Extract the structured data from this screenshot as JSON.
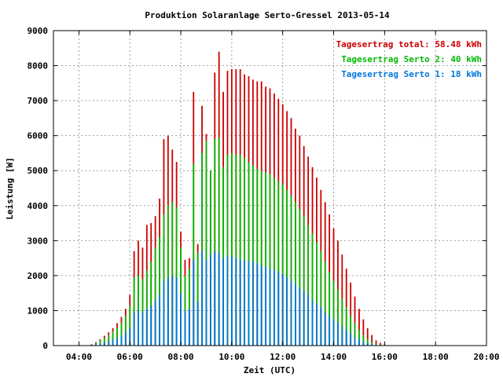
{
  "chart_data": {
    "type": "bar",
    "title": "Produktion Solaranlage Serto-Gressel 2013-05-14",
    "xlabel": "Zeit (UTC)",
    "ylabel": "Leistung [W]",
    "xlim": [
      3.0,
      20.0
    ],
    "ylim": [
      0,
      9000
    ],
    "grid": true,
    "legend_position": "top-right",
    "x_ticks": [
      {
        "value": 4,
        "label": "04:00"
      },
      {
        "value": 6,
        "label": "06:00"
      },
      {
        "value": 8,
        "label": "08:00"
      },
      {
        "value": 10,
        "label": "10:00"
      },
      {
        "value": 12,
        "label": "12:00"
      },
      {
        "value": 14,
        "label": "14:00"
      },
      {
        "value": 16,
        "label": "16:00"
      },
      {
        "value": 18,
        "label": "18:00"
      },
      {
        "value": 20,
        "label": "20:00"
      }
    ],
    "y_ticks": [
      {
        "value": 0,
        "label": "0"
      },
      {
        "value": 1000,
        "label": "1000"
      },
      {
        "value": 2000,
        "label": "2000"
      },
      {
        "value": 3000,
        "label": "3000"
      },
      {
        "value": 4000,
        "label": "4000"
      },
      {
        "value": 5000,
        "label": "5000"
      },
      {
        "value": 6000,
        "label": "6000"
      },
      {
        "value": 7000,
        "label": "7000"
      },
      {
        "value": 8000,
        "label": "8000"
      },
      {
        "value": 9000,
        "label": "9000"
      }
    ],
    "series": [
      {
        "name": "Tagesertrag total: 58.48 kWh",
        "color": "#cc0000"
      },
      {
        "name": "Tagesertrag Serto 2: 40 kWh",
        "color": "#00bb00"
      },
      {
        "name": "Tagesertrag Serto 1: 18 kWh",
        "color": "#0077dd"
      }
    ],
    "interval_minutes": 10,
    "x": [
      4.5,
      4.667,
      4.833,
      5.0,
      5.167,
      5.333,
      5.5,
      5.667,
      5.833,
      6.0,
      6.167,
      6.333,
      6.5,
      6.667,
      6.833,
      7.0,
      7.167,
      7.333,
      7.5,
      7.667,
      7.833,
      8.0,
      8.167,
      8.333,
      8.5,
      8.667,
      8.833,
      9.0,
      9.167,
      9.333,
      9.5,
      9.667,
      9.833,
      10.0,
      10.167,
      10.333,
      10.5,
      10.667,
      10.833,
      11.0,
      11.167,
      11.333,
      11.5,
      11.667,
      11.833,
      12.0,
      12.167,
      12.333,
      12.5,
      12.667,
      12.833,
      13.0,
      13.167,
      13.333,
      13.5,
      13.667,
      13.833,
      14.0,
      14.167,
      14.333,
      14.5,
      14.667,
      14.833,
      15.0,
      15.167,
      15.333,
      15.5,
      15.667,
      15.833,
      16.0,
      16.167,
      16.333,
      16.5,
      16.667,
      16.833,
      17.0,
      17.167,
      17.333,
      17.5,
      17.667,
      17.833,
      18.0,
      18.167,
      18.333,
      18.5,
      18.667
    ],
    "total": [
      40,
      100,
      180,
      280,
      380,
      500,
      640,
      820,
      1050,
      1450,
      2700,
      3000,
      2800,
      3450,
      3500,
      3700,
      4200,
      5900,
      6000,
      5600,
      5250,
      3250,
      2450,
      2500,
      7250,
      2900,
      6850,
      6050,
      5000,
      7800,
      8400,
      7250,
      7850,
      7900,
      7900,
      7900,
      7750,
      7700,
      7600,
      7550,
      7550,
      7400,
      7350,
      7200,
      7050,
      6900,
      6700,
      6500,
      6200,
      6000,
      5700,
      5400,
      5100,
      4800,
      4450,
      4100,
      3750,
      3350,
      3000,
      2600,
      2200,
      1800,
      1400,
      1050,
      750,
      500,
      300,
      150,
      80,
      30,
      10,
      5,
      5,
      5,
      5,
      5,
      5,
      5,
      5,
      5,
      5,
      5,
      5,
      5,
      5,
      5
    ],
    "serto2": [
      30,
      80,
      140,
      210,
      300,
      400,
      510,
      650,
      850,
      1150,
      1950,
      2000,
      1900,
      2150,
      2400,
      2800,
      3100,
      3750,
      4000,
      4100,
      3950,
      2800,
      2000,
      2200,
      5200,
      2650,
      5500,
      5850,
      5000,
      5900,
      5950,
      5100,
      5450,
      5500,
      5450,
      5450,
      5350,
      5250,
      5150,
      5050,
      5000,
      4950,
      4900,
      4800,
      4700,
      4600,
      4450,
      4300,
      4100,
      3900,
      3700,
      3450,
      3200,
      2950,
      2700,
      2400,
      2100,
      1850,
      1600,
      1350,
      1100,
      850,
      650,
      450,
      300,
      180,
      100,
      50,
      20,
      10,
      5,
      5,
      5,
      5,
      5,
      5,
      5,
      5,
      5,
      5,
      5,
      5,
      5,
      5,
      5,
      5
    ],
    "serto1": [
      15,
      40,
      60,
      90,
      130,
      170,
      220,
      280,
      380,
      500,
      950,
      1000,
      950,
      1050,
      1150,
      1300,
      1450,
      1850,
      1950,
      2000,
      1950,
      1500,
      1000,
      1050,
      2450,
      1250,
      2700,
      2450,
      2600,
      2700,
      2650,
      2500,
      2550,
      2550,
      2500,
      2450,
      2450,
      2400,
      2400,
      2350,
      2300,
      2250,
      2200,
      2150,
      2100,
      2050,
      1950,
      1850,
      1750,
      1650,
      1550,
      1450,
      1300,
      1200,
      1100,
      950,
      850,
      750,
      650,
      550,
      450,
      350,
      250,
      180,
      120,
      70,
      40,
      20,
      10,
      5,
      5,
      5,
      5,
      5,
      5,
      5,
      5,
      5,
      5,
      5,
      5,
      5,
      5,
      5,
      5,
      5
    ]
  }
}
